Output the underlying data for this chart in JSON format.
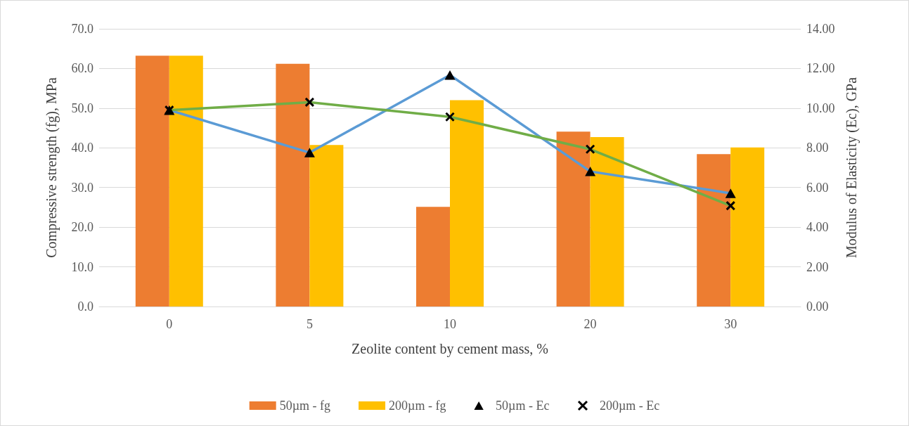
{
  "chart_data": {
    "type": "bar",
    "xlabel": "Zeolite content by cement mass, %",
    "ylabel": "Compressive strength (fg), MPa",
    "y2label": "Modulus of Elasticity (Ec), GPa",
    "categories": [
      "0",
      "5",
      "10",
      "20",
      "30"
    ],
    "series": [
      {
        "name": "50µm - fg",
        "color": "#ed7d31",
        "values": [
          63.2,
          61.2,
          25.1,
          44.1,
          38.4
        ]
      },
      {
        "name": "200µm - fg",
        "color": "#ffc000",
        "values": [
          63.2,
          40.7,
          52.0,
          42.7,
          40.1
        ]
      },
      {
        "name": "50µm - Ec",
        "type": "line",
        "axis": "y2",
        "marker": "triangle",
        "color": "#5b9bd5",
        "values": [
          9.9,
          7.76,
          11.67,
          6.81,
          5.71
        ]
      },
      {
        "name": "200µm - Ec",
        "type": "line",
        "axis": "y2",
        "marker": "cross",
        "color": "#70ad47",
        "values": [
          9.9,
          10.3,
          9.56,
          7.93,
          5.08
        ]
      }
    ],
    "ylim": [
      0,
      70
    ],
    "yticks": [
      {
        "value": 0,
        "label": "0.0"
      },
      {
        "value": 10,
        "label": "10.0"
      },
      {
        "value": 20,
        "label": "20.0"
      },
      {
        "value": 30,
        "label": "30.0"
      },
      {
        "value": 40,
        "label": "40.0"
      },
      {
        "value": 50,
        "label": "50.0"
      },
      {
        "value": 60,
        "label": "60.0"
      },
      {
        "value": 70,
        "label": "70.0"
      }
    ],
    "y2lim": [
      0,
      14
    ],
    "y2ticks": [
      {
        "value": 0,
        "label": "0.00"
      },
      {
        "value": 2,
        "label": "2.00"
      },
      {
        "value": 4,
        "label": "4.00"
      },
      {
        "value": 6,
        "label": "6.00"
      },
      {
        "value": 8,
        "label": "8.00"
      },
      {
        "value": 10,
        "label": "10.00"
      },
      {
        "value": 12,
        "label": "12.00"
      },
      {
        "value": 14,
        "label": "14.00"
      }
    ],
    "grid": "y",
    "legend": "bottom"
  }
}
